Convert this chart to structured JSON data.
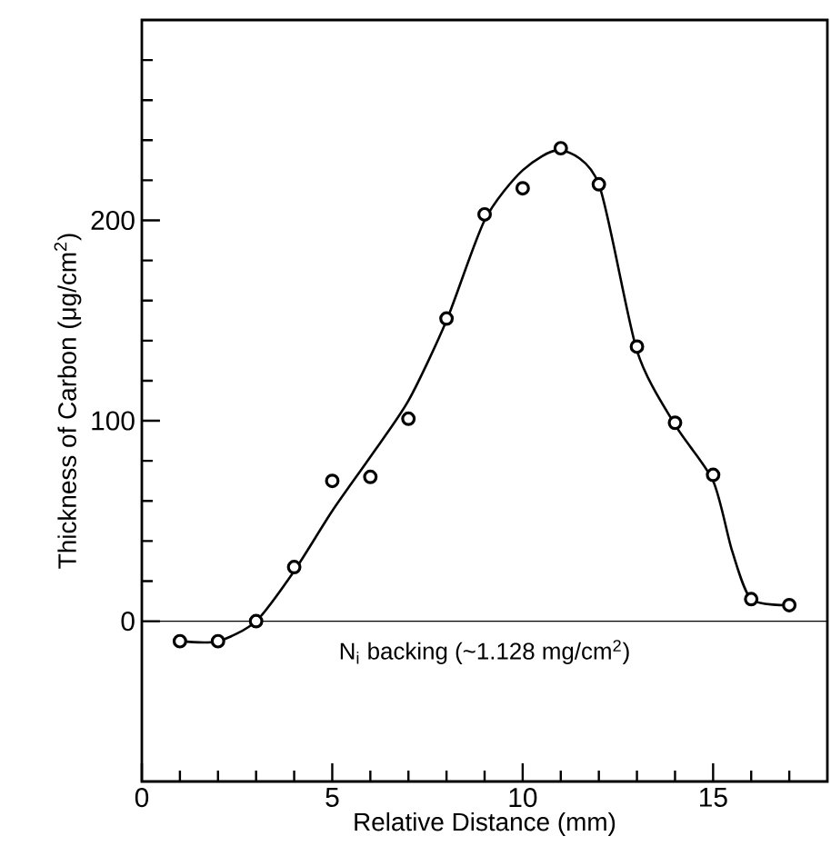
{
  "chart_data": {
    "type": "scatter",
    "xlabel": "Relative Distance (mm)",
    "ylabel": "Thickness of Carbon (μg/cm$^{2}$)",
    "xlim": [
      0,
      18
    ],
    "ylim": [
      -80,
      300
    ],
    "xticks": [
      0,
      {
        "value": 1,
        "label": null
      },
      {
        "value": 2,
        "label": null
      },
      {
        "value": 3,
        "label": null
      },
      {
        "value": 4,
        "label": null
      },
      5,
      {
        "value": 6,
        "label": null
      },
      {
        "value": 7,
        "label": null
      },
      {
        "value": 8,
        "label": null
      },
      {
        "value": 9,
        "label": null
      },
      10,
      {
        "value": 11,
        "label": null
      },
      {
        "value": 12,
        "label": null
      },
      {
        "value": 13,
        "label": null
      },
      {
        "value": 14,
        "label": null
      },
      15,
      {
        "value": 16,
        "label": null
      },
      {
        "value": 17,
        "label": null
      }
    ],
    "yticks": [
      0,
      {
        "value": 20,
        "label": null
      },
      {
        "value": 40,
        "label": null
      },
      {
        "value": 60,
        "label": null
      },
      {
        "value": 80,
        "label": null
      },
      100,
      {
        "value": 120,
        "label": null
      },
      {
        "value": 140,
        "label": null
      },
      {
        "value": 160,
        "label": null
      },
      {
        "value": 180,
        "label": null
      },
      200,
      {
        "value": 220,
        "label": null
      },
      {
        "value": 240,
        "label": null
      },
      {
        "value": 260,
        "label": null
      },
      {
        "value": 280,
        "label": null
      }
    ],
    "ref_lines": [
      {
        "axis": "y",
        "value": 0,
        "color": "#000000"
      }
    ],
    "annotations": [
      "N$_{i}$ backing (~1.128 mg/cm$^{2}$)"
    ],
    "series": [
      {
        "type": "line",
        "color": "#000000",
        "marker": "none",
        "x": [
          1,
          2,
          3,
          4,
          5,
          6,
          7,
          8,
          9,
          10,
          11,
          12,
          13,
          14,
          15,
          15.5,
          16,
          17
        ],
        "values": [
          -10,
          -10,
          0,
          25,
          55,
          82,
          110,
          150,
          200,
          225,
          235,
          218,
          135,
          98,
          70,
          35,
          11,
          8
        ]
      },
      {
        "color": "#000000",
        "marker": "circle",
        "x": [
          1,
          2,
          3,
          4,
          5,
          6,
          7,
          8,
          9,
          10,
          11,
          12,
          13,
          14,
          15,
          16,
          17
        ],
        "values": [
          -10,
          -10,
          0,
          27,
          70,
          72,
          101,
          151,
          203,
          216,
          236,
          218,
          137,
          99,
          73,
          11,
          8
        ]
      }
    ]
  }
}
